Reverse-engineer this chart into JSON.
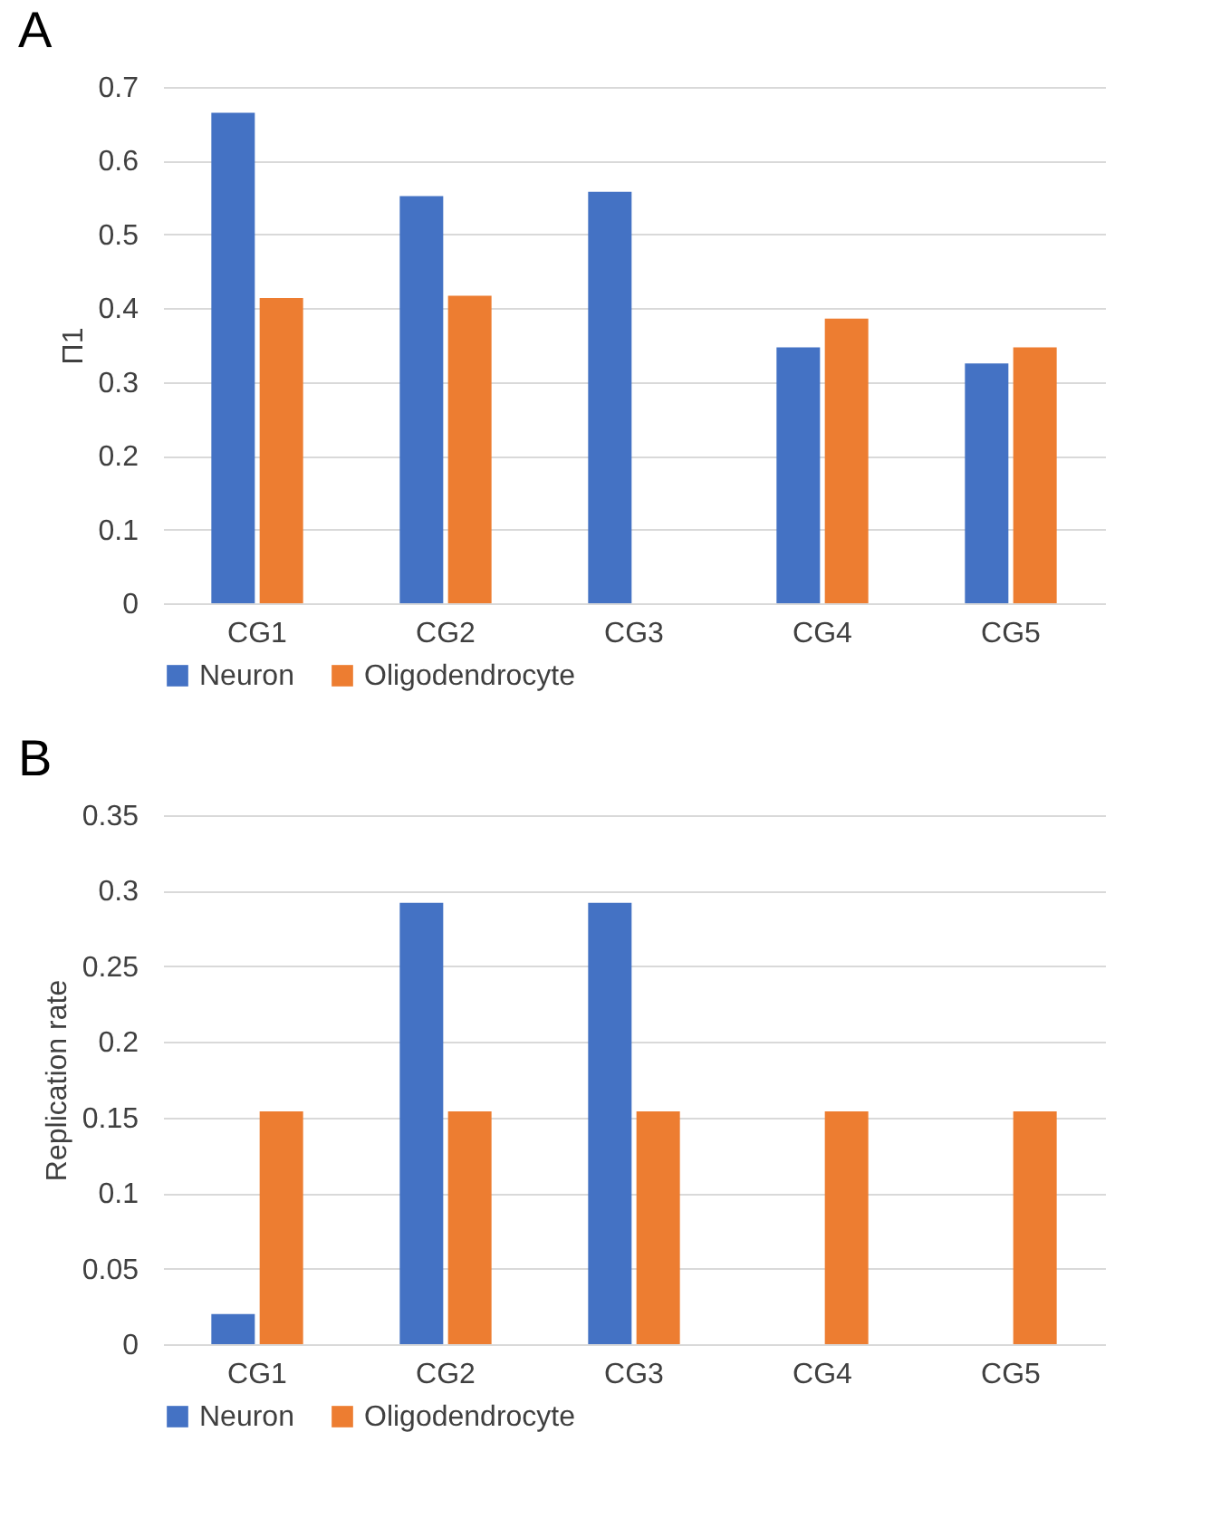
{
  "chart_data": [
    {
      "type": "bar",
      "title": "A",
      "ylabel": "Π1",
      "categories": [
        "CG1",
        "CG2",
        "CG3",
        "CG4",
        "CG5"
      ],
      "series": [
        {
          "name": "Neuron",
          "color": "#4472c4",
          "values": [
            0.665,
            0.552,
            0.558,
            0.347,
            0.325
          ]
        },
        {
          "name": "Oligodendrocyte",
          "color": "#ed7d31",
          "values": [
            0.414,
            0.417,
            null,
            0.386,
            0.347
          ]
        }
      ],
      "ylim": [
        0,
        0.7
      ],
      "yticks": [
        0,
        0.1,
        0.2,
        0.3,
        0.4,
        0.5,
        0.6,
        0.7
      ],
      "grid": "y",
      "legend": "bottom"
    },
    {
      "type": "bar",
      "title": "B",
      "ylabel": "Replication rate",
      "categories": [
        "CG1",
        "CG2",
        "CG3",
        "CG4",
        "CG5"
      ],
      "series": [
        {
          "name": "Neuron",
          "color": "#4472c4",
          "values": [
            0.02,
            0.292,
            0.292,
            null,
            null
          ]
        },
        {
          "name": "Oligodendrocyte",
          "color": "#ed7d31",
          "values": [
            0.154,
            0.154,
            0.154,
            0.154,
            0.154
          ]
        }
      ],
      "ylim": [
        0,
        0.35
      ],
      "yticks": [
        0,
        0.05,
        0.1,
        0.15,
        0.2,
        0.25,
        0.3,
        0.35
      ],
      "grid": "y",
      "legend": "bottom"
    }
  ]
}
